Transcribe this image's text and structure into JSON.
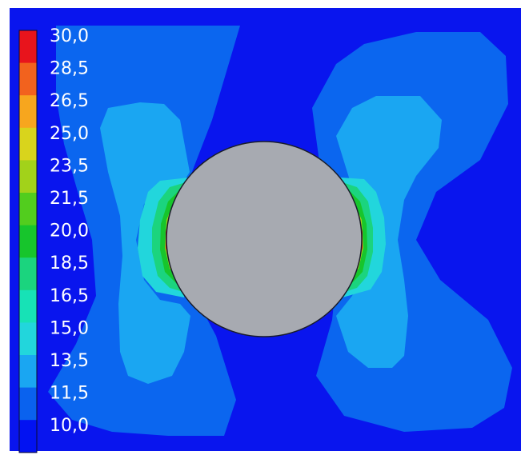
{
  "legend": {
    "colors": [
      "#e8141c",
      "#f2621e",
      "#f7a61e",
      "#d9d41c",
      "#a2d21a",
      "#52cd1e",
      "#17c52c",
      "#1bd47e",
      "#17e2b6",
      "#22d6dc",
      "#1aa6f2",
      "#0a62ee",
      "#0212f2"
    ],
    "labels": [
      "30,0",
      "28,5",
      "26,5",
      "25,0",
      "23,5",
      "21,5",
      "20,0",
      "18,5",
      "16,5",
      "15,0",
      "13,5",
      "11,5",
      "10,0"
    ]
  },
  "field": {
    "background_color": "#0915ee",
    "level_11_5_color": "#0b66ef",
    "level_13_5_color": "#1aa6f2",
    "level_15_color": "#22d6dc",
    "level_16_5_color": "#1bd47e",
    "hotspot_colors": [
      "#17c52c",
      "#a2d21a",
      "#f7a61e",
      "#f2621e",
      "#e8141c"
    ],
    "inclusion_color": "#a7aab1"
  }
}
